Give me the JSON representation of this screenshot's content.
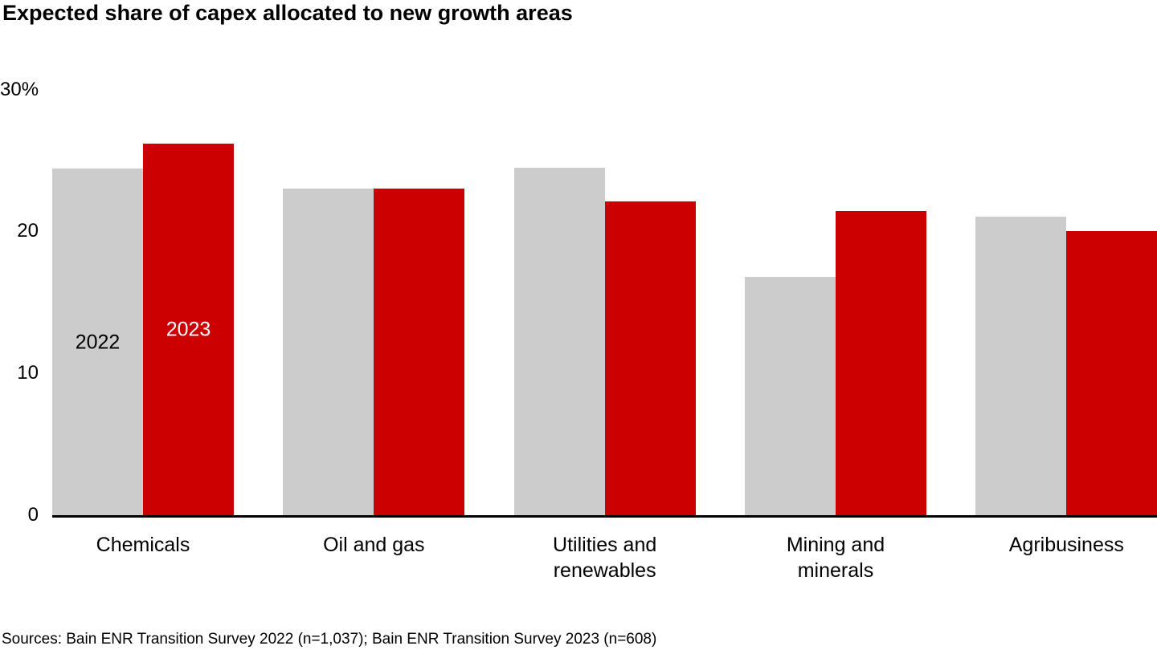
{
  "page": {
    "title": "Expected share of capex allocated to new growth areas",
    "source": "Sources: Bain ENR Transition Survey 2022 (n=1,037); Bain ENR Transition Survey 2023 (n=608)"
  },
  "colors": {
    "bar_2022": "#cccccc",
    "bar_2023": "#cc0000",
    "axis_line": "#000000",
    "label_on_2022_bar": "#000000",
    "label_on_2023_bar": "#ffffff",
    "text": "#000000",
    "background": "#ffffff"
  },
  "chart_data": {
    "type": "bar",
    "title": "Expected share of capex allocated to new growth areas",
    "categories": [
      "Chemicals",
      "Oil and gas",
      "Utilities and renewables",
      "Mining and minerals",
      "Agribusiness"
    ],
    "category_label_lines": [
      [
        "Chemicals"
      ],
      [
        "Oil and gas"
      ],
      [
        "Utilities and",
        "renewables"
      ],
      [
        "Mining and",
        "minerals"
      ],
      [
        "Agribusiness"
      ]
    ],
    "series": [
      {
        "name": "2022",
        "color": "#cccccc",
        "values": [
          24.5,
          23.1,
          24.6,
          16.9,
          21.1
        ]
      },
      {
        "name": "2023",
        "color": "#cc0000",
        "values": [
          26.3,
          23.1,
          22.2,
          21.5,
          20.1
        ]
      }
    ],
    "unit": "%",
    "ylim": [
      0,
      30
    ],
    "yticks": [
      {
        "value": 30,
        "label": "30%"
      },
      {
        "value": 20,
        "label": "20"
      },
      {
        "value": 10,
        "label": "10"
      },
      {
        "value": 0,
        "label": "0"
      }
    ],
    "grid": false,
    "legend": "series year labels shown inside first category bars",
    "xlabel": "",
    "ylabel": ""
  }
}
